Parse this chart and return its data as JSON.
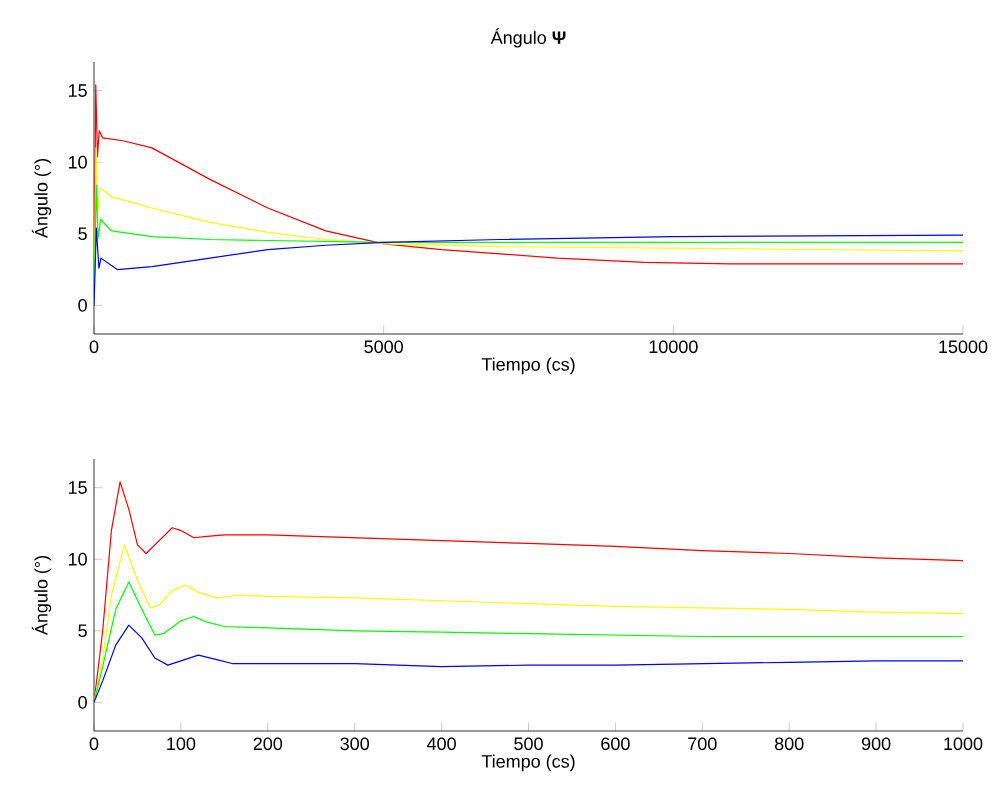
{
  "chart_data": [
    {
      "type": "line",
      "title": "Ángulo **Ψ**",
      "xlabel": "Tiempo (cs)",
      "ylabel": "Ángulo (°)",
      "xlim": [
        0,
        15000
      ],
      "ylim": [
        -2,
        17
      ],
      "xticks": [
        0,
        5000,
        10000,
        15000
      ],
      "yticks": [
        0,
        5,
        10,
        15
      ],
      "series": [
        {
          "color": "#ff0000",
          "x": [
            0,
            30,
            60,
            90,
            150,
            500,
            1000,
            2000,
            3000,
            4000,
            5000,
            6000,
            8000,
            9500,
            11000,
            15000
          ],
          "values": [
            0,
            15.4,
            10.4,
            12.2,
            11.7,
            11.5,
            11,
            8.8,
            6.8,
            5.2,
            4.3,
            3.9,
            3.3,
            3.0,
            2.9,
            2.9
          ]
        },
        {
          "color": "#ffff00",
          "x": [
            0,
            35,
            65,
            105,
            300,
            1000,
            2000,
            3000,
            4000,
            5000,
            7000,
            10000,
            15000
          ],
          "values": [
            0,
            11,
            6.6,
            8.2,
            7.6,
            6.8,
            5.8,
            5.1,
            4.6,
            4.3,
            4.1,
            4.0,
            3.8
          ]
        },
        {
          "color": "#00ff00",
          "x": [
            0,
            40,
            70,
            115,
            300,
            1000,
            2000,
            5000,
            10000,
            15000
          ],
          "values": [
            0,
            8.4,
            4.7,
            6,
            5.2,
            4.8,
            4.6,
            4.4,
            4.4,
            4.4
          ]
        },
        {
          "color": "#0000ff",
          "x": [
            0,
            40,
            85,
            120,
            400,
            1000,
            2000,
            3000,
            4000,
            5000,
            7000,
            10000,
            15000
          ],
          "values": [
            0,
            5.4,
            2.6,
            3.3,
            2.5,
            2.7,
            3.3,
            3.9,
            4.2,
            4.4,
            4.6,
            4.8,
            4.9
          ]
        }
      ]
    },
    {
      "type": "line",
      "xlabel": "Tiempo (cs)",
      "ylabel": "Ángulo (°)",
      "xlim": [
        0,
        1000
      ],
      "ylim": [
        -2,
        17
      ],
      "xticks": [
        0,
        100,
        200,
        300,
        400,
        500,
        600,
        700,
        800,
        900,
        1000
      ],
      "yticks": [
        0,
        5,
        10,
        15
      ],
      "series": [
        {
          "color": "#ff0000",
          "x": [
            0,
            10,
            20,
            30,
            40,
            50,
            60,
            75,
            90,
            100,
            115,
            130,
            150,
            200,
            300,
            400,
            500,
            600,
            700,
            800,
            900,
            1000
          ],
          "values": [
            0,
            5,
            12,
            15.4,
            13.5,
            11,
            10.4,
            11.3,
            12.2,
            12,
            11.5,
            11.6,
            11.7,
            11.7,
            11.5,
            11.3,
            11.1,
            10.9,
            10.6,
            10.4,
            10.1,
            9.9
          ]
        },
        {
          "color": "#ffff00",
          "x": [
            0,
            10,
            20,
            35,
            50,
            65,
            75,
            90,
            105,
            120,
            140,
            170,
            200,
            300,
            400,
            500,
            600,
            700,
            800,
            900,
            1000
          ],
          "values": [
            0,
            3,
            7.5,
            11,
            8.5,
            6.6,
            6.8,
            7.8,
            8.2,
            7.7,
            7.3,
            7.5,
            7.4,
            7.3,
            7.1,
            6.9,
            6.7,
            6.6,
            6.5,
            6.3,
            6.2
          ]
        },
        {
          "color": "#00ff00",
          "x": [
            0,
            10,
            25,
            40,
            55,
            70,
            80,
            100,
            115,
            130,
            150,
            200,
            300,
            400,
            500,
            700,
            1000
          ],
          "values": [
            0,
            2.5,
            6.5,
            8.4,
            6.5,
            4.7,
            4.8,
            5.7,
            6,
            5.6,
            5.3,
            5.2,
            5.0,
            4.9,
            4.8,
            4.6,
            4.6
          ]
        },
        {
          "color": "#0000ff",
          "x": [
            0,
            10,
            25,
            40,
            55,
            70,
            85,
            100,
            120,
            140,
            160,
            200,
            300,
            400,
            500,
            600,
            700,
            800,
            900,
            1000
          ],
          "values": [
            0,
            1.5,
            4,
            5.4,
            4.5,
            3.1,
            2.6,
            2.9,
            3.3,
            3.0,
            2.7,
            2.7,
            2.7,
            2.5,
            2.6,
            2.6,
            2.7,
            2.8,
            2.9,
            2.9
          ]
        }
      ]
    }
  ]
}
